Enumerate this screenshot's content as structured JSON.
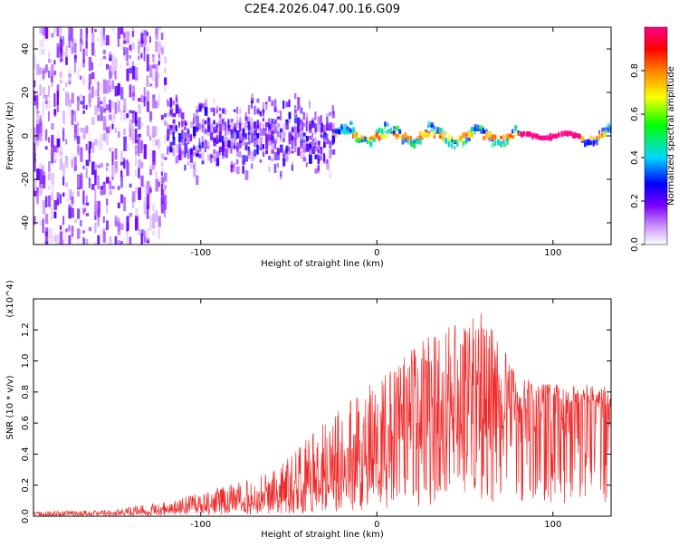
{
  "title": "C2E4.2026.047.00.16.G09",
  "colors": {
    "snr_line": "#ee2b2b",
    "axis": "#000000",
    "background": "#ffffff"
  },
  "chart_data": [
    {
      "type": "heatmap",
      "name": "spectrogram",
      "xlabel": "Height of straight line (km)",
      "ylabel": "Frequency (Hz)",
      "xlim": [
        -195,
        133
      ],
      "ylim": [
        -50,
        50
      ],
      "xticks": [
        -100,
        0,
        100
      ],
      "yticks": [
        -40,
        -20,
        0,
        20,
        40
      ],
      "colorbar": {
        "label": "Normalized spectral amplitude",
        "range": [
          0.0,
          1.0
        ],
        "ticks": [
          0.0,
          0.2,
          0.4,
          0.6,
          0.8
        ],
        "colormap": [
          "#ffffff",
          "#cc99ff",
          "#7a00ff",
          "#0000ff",
          "#00d8ff",
          "#00ff00",
          "#ffff00",
          "#ff8000",
          "#ff0000",
          "#ff0088"
        ]
      },
      "segments": [
        {
          "x_range": [
            -195,
            -120
          ],
          "description_value": 0.15,
          "freq_spread": 50
        },
        {
          "x_range": [
            -120,
            -25
          ],
          "description_value": 0.2,
          "freq_spread": 22
        },
        {
          "x_range": [
            -25,
            80
          ],
          "description_value": 0.45,
          "freq_spread": 4
        },
        {
          "x_range": [
            80,
            115
          ],
          "description_value": 0.9,
          "freq_spread": 1
        },
        {
          "x_range": [
            115,
            133
          ],
          "description_value": 0.4,
          "freq_spread": 3
        }
      ]
    },
    {
      "type": "line",
      "name": "snr",
      "xlabel": "Height of straight line (km)",
      "ylabel": "SNR (10 * v/v)",
      "yscale_label": "(x10^4)",
      "xlim": [
        -195,
        133
      ],
      "ylim": [
        0.0,
        1.4
      ],
      "xticks": [
        -100,
        0,
        100
      ],
      "yticks": [
        0.0,
        0.2,
        0.4,
        0.6,
        0.8,
        1.0,
        1.2
      ],
      "series": [
        {
          "name": "SNR",
          "x": [
            -195,
            -150,
            -120,
            -100,
            -80,
            -60,
            -40,
            -20,
            0,
            20,
            40,
            60,
            80,
            100,
            120,
            133
          ],
          "mean": [
            0.01,
            0.02,
            0.04,
            0.06,
            0.09,
            0.13,
            0.2,
            0.3,
            0.45,
            0.6,
            0.7,
            0.72,
            0.75,
            0.74,
            0.72,
            0.72
          ],
          "peak": [
            0.03,
            0.04,
            0.1,
            0.15,
            0.22,
            0.3,
            0.5,
            0.7,
            0.9,
            1.1,
            1.25,
            1.35,
            0.9,
            0.85,
            0.85,
            0.85
          ]
        }
      ]
    }
  ]
}
